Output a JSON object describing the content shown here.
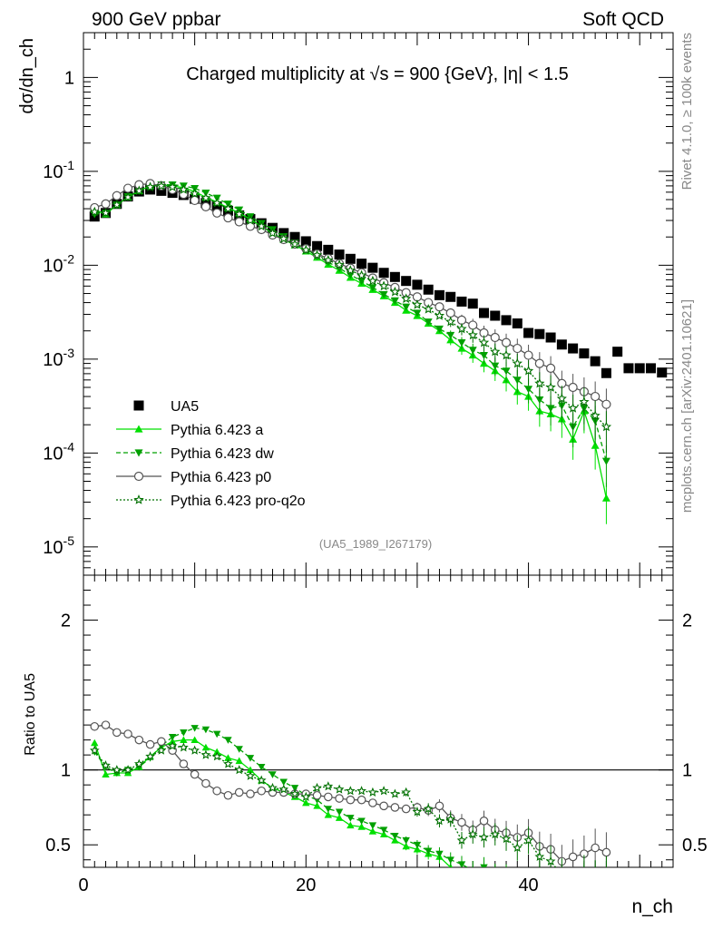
{
  "header": {
    "left": "900 GeV ppbar",
    "right": "Soft QCD"
  },
  "side_labels": {
    "rivet": "Rivet 4.1.0, ≥ 100k events",
    "mcplots": "mcplots.cern.ch [arXiv:2401.10621]"
  },
  "chart_data": {
    "type": "scatter",
    "title": "Charged multiplicity at √s = 900 {GeV}, |η| < 1.5",
    "reference_label": "(UA5_1989_I267179)",
    "xlabel": "n_ch",
    "ylabel": "dσ/dn_ch",
    "ratio_ylabel": "Ratio to UA5",
    "xlim": [
      0,
      53
    ],
    "ylim": [
      5e-06,
      3
    ],
    "ratio_ylim": [
      0.35,
      2.3
    ],
    "yscale": "log",
    "legend_position": "center-left",
    "x_ticks": [
      "0",
      "20",
      "40"
    ],
    "y_ticks": [
      "1",
      "10^-1",
      "10^-2",
      "10^-3",
      "10^-4",
      "10^-5"
    ],
    "ratio_ticks": [
      "0.5",
      "1",
      "2"
    ],
    "series": [
      {
        "name": "UA5",
        "color": "#000000",
        "marker": "square",
        "x": [
          1,
          2,
          3,
          4,
          5,
          6,
          7,
          8,
          9,
          10,
          11,
          12,
          13,
          14,
          15,
          16,
          17,
          18,
          19,
          20,
          21,
          22,
          23,
          24,
          25,
          26,
          27,
          28,
          29,
          30,
          31,
          32,
          33,
          34,
          35,
          36,
          37,
          38,
          39,
          40,
          41,
          42,
          43,
          44,
          45,
          46,
          47,
          48,
          49,
          50,
          51,
          52
        ],
        "values": [
          0.033,
          0.036,
          0.045,
          0.054,
          0.061,
          0.064,
          0.062,
          0.059,
          0.056,
          0.051,
          0.046,
          0.042,
          0.038,
          0.034,
          0.031,
          0.028,
          0.025,
          0.022,
          0.02,
          0.018,
          0.016,
          0.0146,
          0.013,
          0.0117,
          0.0104,
          0.0094,
          0.0083,
          0.0075,
          0.0068,
          0.0062,
          0.0055,
          0.0048,
          0.0046,
          0.0041,
          0.0039,
          0.0031,
          0.0029,
          0.0026,
          0.0024,
          0.0019,
          0.00185,
          0.0017,
          0.00143,
          0.0013,
          0.00115,
          0.00095,
          0.00071,
          0.0012,
          0.0008,
          0.0008,
          0.0008,
          0.00072
        ]
      },
      {
        "name": "Pythia 6.423 a",
        "color": "#00e000",
        "marker": "triangle-up",
        "line": "solid",
        "x": [
          1,
          2,
          3,
          4,
          5,
          6,
          7,
          8,
          9,
          10,
          11,
          12,
          13,
          14,
          15,
          16,
          17,
          18,
          19,
          20,
          21,
          22,
          23,
          24,
          25,
          26,
          27,
          28,
          29,
          30,
          31,
          32,
          33,
          34,
          35,
          36,
          37,
          38,
          39,
          40,
          41,
          42,
          43,
          44,
          45,
          46,
          47
        ],
        "values": [
          0.039,
          0.035,
          0.044,
          0.053,
          0.062,
          0.07,
          0.071,
          0.07,
          0.067,
          0.061,
          0.053,
          0.047,
          0.041,
          0.036,
          0.031,
          0.026,
          0.022,
          0.0187,
          0.0164,
          0.0141,
          0.0121,
          0.0102,
          0.0088,
          0.0074,
          0.0064,
          0.0055,
          0.0047,
          0.004,
          0.0033,
          0.0029,
          0.0024,
          0.002,
          0.0016,
          0.0013,
          0.0011,
          0.0009,
          0.00075,
          0.0006,
          0.00045,
          0.0004,
          0.00028,
          0.00026,
          0.00023,
          0.00014,
          0.00028,
          0.00012,
          3.3e-05
        ],
        "ratio": [
          1.18,
          0.97,
          0.98,
          0.98,
          1.02,
          1.09,
          1.15,
          1.19,
          1.2,
          1.2,
          1.15,
          1.12,
          1.08,
          1.06,
          1.0,
          0.93,
          0.88,
          0.85,
          0.82,
          0.78,
          0.76,
          0.7,
          0.68,
          0.63,
          0.62,
          0.59,
          0.57,
          0.53,
          0.49,
          0.47,
          0.44,
          0.42,
          0.35,
          0.32,
          0.28,
          0.29,
          0.26,
          0.23,
          0.19,
          0.21,
          0.15,
          0.15,
          0.16,
          0.11,
          0.24,
          0.13,
          0.05
        ]
      },
      {
        "name": "Pythia 6.423 dw",
        "color": "#00a000",
        "marker": "triangle-down",
        "line": "dashed",
        "x": [
          1,
          2,
          3,
          4,
          5,
          6,
          7,
          8,
          9,
          10,
          11,
          12,
          13,
          14,
          15,
          16,
          17,
          18,
          19,
          20,
          21,
          22,
          23,
          24,
          25,
          26,
          27,
          28,
          29,
          30,
          31,
          32,
          33,
          34,
          35,
          36,
          37,
          38,
          39,
          40,
          41,
          42,
          43,
          44,
          45,
          46,
          47
        ],
        "values": [
          0.035,
          0.036,
          0.044,
          0.054,
          0.062,
          0.069,
          0.072,
          0.072,
          0.07,
          0.066,
          0.059,
          0.052,
          0.045,
          0.039,
          0.033,
          0.028,
          0.024,
          0.0202,
          0.0173,
          0.0149,
          0.0125,
          0.0108,
          0.0093,
          0.0079,
          0.0068,
          0.0058,
          0.0049,
          0.0042,
          0.0036,
          0.0031,
          0.0025,
          0.0021,
          0.0018,
          0.0015,
          0.00125,
          0.0011,
          0.00085,
          0.00075,
          0.0006,
          0.00048,
          0.00037,
          0.0003,
          0.00032,
          0.00019,
          0.0003,
          0.00022,
          8.2e-05
        ],
        "ratio": [
          1.12,
          1.02,
          0.98,
          1.0,
          1.02,
          1.08,
          1.16,
          1.22,
          1.25,
          1.28,
          1.27,
          1.24,
          1.2,
          1.14,
          1.08,
          1.02,
          0.97,
          0.92,
          0.88,
          0.83,
          0.8,
          0.74,
          0.72,
          0.68,
          0.66,
          0.63,
          0.6,
          0.56,
          0.53,
          0.5,
          0.46,
          0.44,
          0.4,
          0.37,
          0.33,
          0.35,
          0.3,
          0.29,
          0.25,
          0.25,
          0.2,
          0.18,
          0.22,
          0.15,
          0.26,
          0.23,
          0.12
        ]
      },
      {
        "name": "Pythia 6.423 p0",
        "color": "#555555",
        "marker": "circle-open",
        "line": "solid",
        "x": [
          1,
          2,
          3,
          4,
          5,
          6,
          7,
          8,
          9,
          10,
          11,
          12,
          13,
          14,
          15,
          16,
          17,
          18,
          19,
          20,
          21,
          22,
          23,
          24,
          25,
          26,
          27,
          28,
          29,
          30,
          31,
          32,
          33,
          34,
          35,
          36,
          37,
          38,
          39,
          40,
          41,
          42,
          43,
          44,
          45,
          46,
          47
        ],
        "values": [
          0.041,
          0.045,
          0.055,
          0.066,
          0.072,
          0.074,
          0.07,
          0.064,
          0.057,
          0.049,
          0.042,
          0.036,
          0.032,
          0.029,
          0.026,
          0.024,
          0.021,
          0.0188,
          0.0168,
          0.015,
          0.0132,
          0.0118,
          0.0104,
          0.0093,
          0.0083,
          0.0073,
          0.0065,
          0.0058,
          0.0051,
          0.0046,
          0.004,
          0.0036,
          0.0031,
          0.0026,
          0.0023,
          0.0019,
          0.0017,
          0.0015,
          0.0013,
          0.0011,
          0.0009,
          0.0008,
          0.00055,
          0.0005,
          0.00045,
          0.0004,
          0.00033
        ],
        "ratio": [
          1.29,
          1.3,
          1.25,
          1.24,
          1.2,
          1.17,
          1.19,
          1.13,
          1.04,
          0.97,
          0.91,
          0.86,
          0.83,
          0.85,
          0.84,
          0.86,
          0.85,
          0.85,
          0.84,
          0.84,
          0.83,
          0.82,
          0.81,
          0.8,
          0.8,
          0.78,
          0.76,
          0.75,
          0.74,
          0.75,
          0.73,
          0.76,
          0.68,
          0.65,
          0.6,
          0.66,
          0.6,
          0.58,
          0.55,
          0.58,
          0.49,
          0.47,
          0.39,
          0.42,
          0.44,
          0.48,
          0.45
        ]
      },
      {
        "name": "Pythia 6.423 pro-q2o",
        "color": "#007000",
        "marker": "star-open",
        "line": "dotted",
        "x": [
          1,
          2,
          3,
          4,
          5,
          6,
          7,
          8,
          9,
          10,
          11,
          12,
          13,
          14,
          15,
          16,
          17,
          18,
          19,
          20,
          21,
          22,
          23,
          24,
          25,
          26,
          27,
          28,
          29,
          30,
          31,
          32,
          33,
          34,
          35,
          36,
          37,
          38,
          39,
          40,
          41,
          42,
          43,
          44,
          45,
          46,
          47
        ],
        "values": [
          0.037,
          0.036,
          0.044,
          0.053,
          0.062,
          0.068,
          0.07,
          0.068,
          0.064,
          0.058,
          0.052,
          0.046,
          0.04,
          0.035,
          0.03,
          0.026,
          0.022,
          0.0192,
          0.0167,
          0.0145,
          0.0128,
          0.0113,
          0.0101,
          0.0088,
          0.0078,
          0.0068,
          0.006,
          0.0052,
          0.0044,
          0.0038,
          0.0034,
          0.0029,
          0.0025,
          0.0021,
          0.0018,
          0.0015,
          0.0012,
          0.0011,
          0.0009,
          0.00075,
          0.00055,
          0.0005,
          0.00038,
          0.0003,
          0.00035,
          0.00025,
          0.00019
        ],
        "ratio": [
          1.13,
          1.03,
          1.0,
          1.0,
          1.04,
          1.09,
          1.13,
          1.16,
          1.15,
          1.13,
          1.1,
          1.09,
          1.04,
          1.0,
          0.96,
          0.93,
          0.88,
          0.87,
          0.84,
          0.82,
          0.88,
          0.89,
          0.87,
          0.86,
          0.86,
          0.85,
          0.86,
          0.84,
          0.85,
          0.72,
          0.74,
          0.66,
          0.67,
          0.53,
          0.57,
          0.55,
          0.57,
          0.54,
          0.48,
          0.53,
          0.42,
          0.39,
          0.3,
          0.22,
          0.31,
          0.27,
          0.29
        ]
      }
    ]
  }
}
